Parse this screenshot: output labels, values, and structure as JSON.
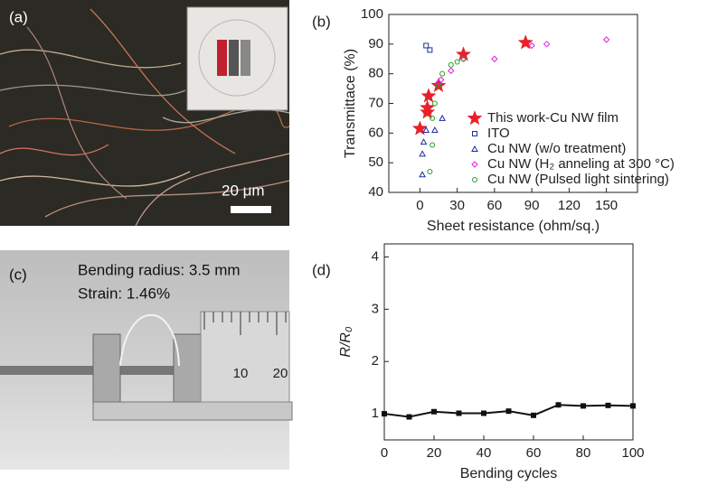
{
  "photos": {
    "a": {
      "label": "(a)",
      "scale_bar": "20 μm"
    },
    "c": {
      "label": "(c)",
      "lines": [
        "Bending radius: 3.5 mm",
        "Strain: 1.46%"
      ],
      "ruler": [
        "10",
        "20"
      ]
    }
  },
  "chart_data": [
    {
      "type": "scatter",
      "label": "(b)",
      "x_label": "Sheet resistance (ohm/sq.)",
      "y_label": "Transmittace (%)",
      "xlim": [
        -25,
        175
      ],
      "xticks": [
        0,
        30,
        60,
        90,
        120,
        150
      ],
      "ylim": [
        40,
        100
      ],
      "yticks": [
        40,
        50,
        60,
        70,
        80,
        90,
        100
      ],
      "grid": false,
      "legend": "lower right",
      "series": [
        {
          "name": "This work-Cu NW film",
          "color": "#e8202a",
          "marker": "star",
          "x": [
            0,
            6,
            6,
            7,
            15,
            35,
            85
          ],
          "values": [
            61.5,
            67,
            68.5,
            72.5,
            76,
            86.5,
            90.5
          ]
        },
        {
          "name": "ITO",
          "color": "#1a2fa0",
          "marker": "square",
          "x": [
            5,
            8
          ],
          "values": [
            89.5,
            88
          ]
        },
        {
          "name": "Cu NW (w/o treatment)",
          "color": "#1a2fa0",
          "marker": "triangle",
          "x": [
            2,
            2,
            3,
            5,
            12,
            18
          ],
          "values": [
            46,
            53,
            57,
            61,
            61,
            65
          ]
        },
        {
          "name": "Cu NW (H₂ anneling at 300 °C)",
          "color": "#e020e0",
          "marker": "diamond",
          "x": [
            15,
            17,
            25,
            35,
            60,
            90,
            102,
            150
          ],
          "values": [
            77,
            78,
            81,
            85,
            85,
            89.5,
            90,
            91.5
          ]
        },
        {
          "name": "Cu NW (Pulsed light sintering)",
          "color": "#20a020",
          "marker": "circle",
          "x": [
            8,
            10,
            10,
            12,
            15,
            18,
            25,
            30,
            35
          ],
          "values": [
            47,
            56,
            65,
            70,
            76,
            80,
            83,
            84,
            85
          ]
        }
      ]
    },
    {
      "type": "line",
      "label": "(d)",
      "x_label": "Bending cycles",
      "y_label": "R/R₀",
      "xlim": [
        0,
        100
      ],
      "xticks": [
        0,
        20,
        40,
        60,
        80,
        100
      ],
      "ylim": [
        0.5,
        4.25
      ],
      "yticks": [
        1,
        2,
        3,
        4
      ],
      "grid": false,
      "series": [
        {
          "color": "#111111",
          "marker": "square",
          "x": [
            0,
            10,
            20,
            30,
            40,
            50,
            60,
            70,
            80,
            90,
            100
          ],
          "values": [
            1.0,
            0.94,
            1.04,
            1.01,
            1.01,
            1.05,
            0.97,
            1.17,
            1.15,
            1.16,
            1.15
          ]
        }
      ]
    }
  ]
}
